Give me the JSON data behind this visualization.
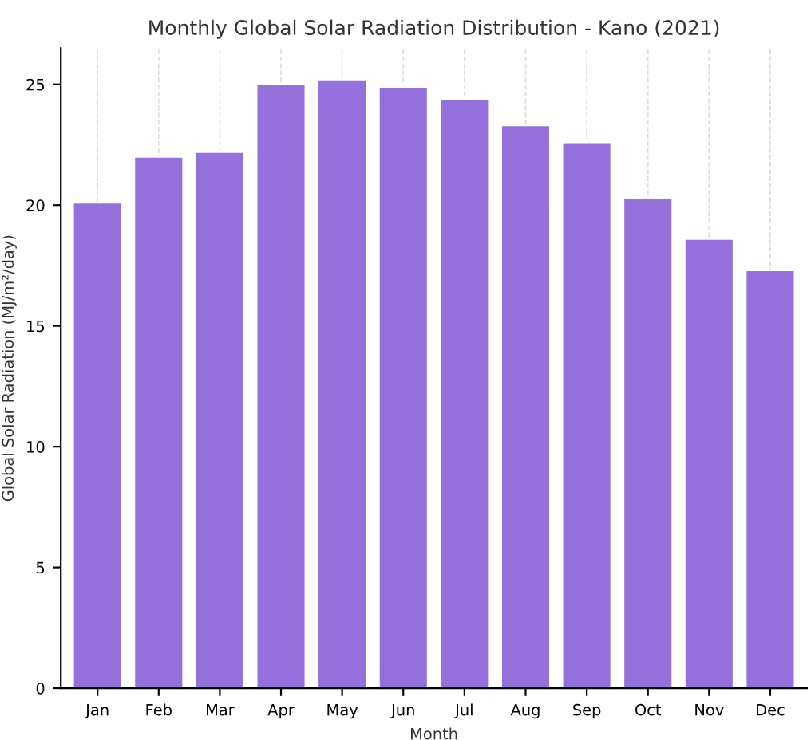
{
  "chart_data": {
    "type": "bar",
    "title": "Monthly Global Solar Radiation Distribution - Kano (2021)",
    "xlabel": "Month",
    "ylabel": "Global Solar Radiation (MJ/m²/day)",
    "categories": [
      "Jan",
      "Feb",
      "Mar",
      "Apr",
      "May",
      "Jun",
      "Jul",
      "Aug",
      "Sep",
      "Oct",
      "Nov",
      "Dec"
    ],
    "values": [
      20.1,
      22.0,
      22.2,
      25.0,
      25.2,
      24.9,
      24.4,
      23.3,
      22.6,
      20.3,
      18.6,
      17.3
    ],
    "color": "#9370db",
    "ylim": [
      0,
      26.5
    ],
    "yticks": [
      0,
      5,
      10,
      15,
      20,
      25
    ],
    "grid": "x"
  }
}
